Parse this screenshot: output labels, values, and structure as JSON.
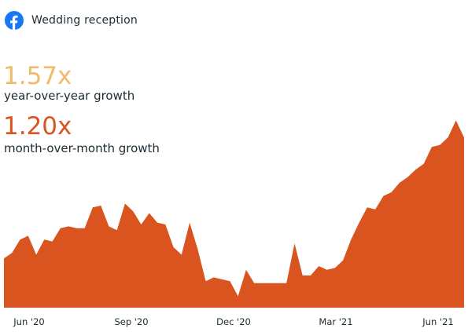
{
  "header": {
    "title": "Wedding reception",
    "icon": "facebook-icon",
    "icon_color": "#1877f2"
  },
  "stats": {
    "yoy_value": "1.57x",
    "yoy_label": "year-over-year growth",
    "yoy_color": "#f0bb6a",
    "mom_value": "1.20x",
    "mom_label": "month-over-month growth",
    "mom_color": "#d9541f"
  },
  "chart_data": {
    "type": "area",
    "title": "",
    "xlabel": "",
    "ylabel": "",
    "color": "#d9541f",
    "grid": false,
    "legend": "none",
    "ylim": [
      0,
      100
    ],
    "x_ticks": [
      "Jun '20",
      "Sep '20",
      "Dec '20",
      "Mar '21",
      "Jun '21"
    ],
    "series": [
      {
        "values": [
          26,
          29,
          36,
          38,
          28,
          36,
          35,
          42,
          43,
          42,
          42,
          53,
          54,
          43,
          41,
          55,
          51,
          44,
          50,
          45,
          44,
          32,
          28,
          45,
          31,
          14,
          16,
          15,
          14,
          6,
          20,
          13,
          13,
          13,
          13,
          13,
          34,
          17,
          17,
          22,
          20,
          21,
          25,
          36,
          45,
          53,
          52,
          59,
          61,
          66,
          69,
          73,
          76,
          85,
          86,
          90,
          99,
          90
        ]
      }
    ]
  }
}
